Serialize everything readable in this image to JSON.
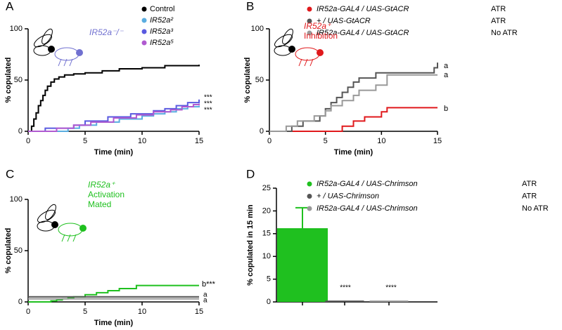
{
  "chart_data": [
    {
      "type": "step",
      "label": "A",
      "xlabel": "Time (min)",
      "ylabel": "% copulated",
      "xlim": [
        0,
        15
      ],
      "xticks": [
        0,
        5,
        10,
        15
      ],
      "ylim": [
        0,
        100
      ],
      "yticks": [
        0,
        50,
        100
      ],
      "series": [
        {
          "name": "Control",
          "color": "#000000",
          "x": [
            0,
            0.3,
            0.5,
            0.7,
            0.9,
            1.1,
            1.3,
            1.5,
            1.7,
            2,
            2.3,
            2.7,
            3.2,
            4,
            5,
            6.5,
            8,
            10,
            12,
            15
          ],
          "values": [
            0,
            5,
            12,
            18,
            25,
            30,
            35,
            40,
            44,
            48,
            51,
            53,
            55,
            56,
            57,
            59,
            61,
            62,
            64,
            65
          ]
        },
        {
          "name": "IR52a²",
          "color": "#5aade0",
          "x": [
            0,
            3.5,
            4.5,
            6,
            8,
            10,
            11,
            12,
            13,
            14,
            15
          ],
          "values": [
            0,
            3,
            6,
            9,
            12,
            15,
            17,
            19,
            22,
            24,
            25
          ]
        },
        {
          "name": "IR52a³",
          "color": "#5a5ae0",
          "x": [
            0,
            1.5,
            4,
            5,
            7,
            9,
            11,
            12,
            13,
            14,
            15
          ],
          "values": [
            0,
            3,
            6,
            10,
            14,
            17,
            20,
            22,
            25,
            28,
            31
          ]
        },
        {
          "name": "IR52a⁵",
          "color": "#b05ad0",
          "x": [
            0,
            2.5,
            4,
            5.5,
            7.5,
            9.5,
            11,
            12.5,
            13.5,
            14.5,
            15
          ],
          "values": [
            0,
            3,
            6,
            9,
            13,
            16,
            19,
            21,
            24,
            26,
            27
          ]
        }
      ],
      "annotations": [
        {
          "text": "IR52a⁻/⁻",
          "color": "#7070d0"
        },
        {
          "text": "***",
          "color": "#000000"
        },
        {
          "text": "***",
          "color": "#000000"
        },
        {
          "text": "***",
          "color": "#000000"
        }
      ]
    },
    {
      "type": "step",
      "label": "B",
      "xlabel": "Time (min)",
      "ylabel": "% copulated",
      "xlim": [
        0,
        15
      ],
      "xticks": [
        0,
        5,
        10,
        15
      ],
      "ylim": [
        0,
        100
      ],
      "yticks": [
        0,
        50,
        100
      ],
      "series": [
        {
          "name": "IR52a-GAL4 / UAS-GtACR",
          "condition": "ATR",
          "color": "#e0191c",
          "x": [
            0,
            6.5,
            7.5,
            8.5,
            10,
            10.5,
            15
          ],
          "values": [
            0,
            5,
            10,
            14,
            19,
            23,
            23
          ]
        },
        {
          "name": "+ / UAS-GtACR",
          "condition": "ATR",
          "color": "#555555",
          "x": [
            0,
            2,
            3,
            4.5,
            5,
            5.5,
            6,
            6.5,
            7,
            7.5,
            8,
            9.5,
            14.7,
            15
          ],
          "values": [
            0,
            5,
            10,
            15,
            22,
            28,
            33,
            38,
            43,
            48,
            52,
            57,
            62,
            67
          ]
        },
        {
          "name": "IR52a-GAL4 / UAS-GtACR",
          "condition": "No ATR",
          "color": "#999999",
          "x": [
            0,
            1.5,
            2.5,
            4,
            5,
            5.5,
            6.5,
            7.5,
            8,
            9.5,
            10.5,
            15
          ],
          "values": [
            0,
            5,
            10,
            15,
            20,
            25,
            30,
            35,
            40,
            45,
            55,
            55
          ]
        }
      ],
      "annotations": [
        {
          "text": "IR52a⁺",
          "color": "#e0191c"
        },
        {
          "text": "Inhibition",
          "color": "#e0191c"
        },
        {
          "text": "a",
          "color": "#000000"
        },
        {
          "text": "a",
          "color": "#000000"
        },
        {
          "text": "b",
          "color": "#000000"
        }
      ]
    },
    {
      "type": "step",
      "label": "C",
      "xlabel": "Time (min)",
      "ylabel": "% copulated",
      "xlim": [
        0,
        15
      ],
      "xticks": [
        0,
        5,
        10,
        15
      ],
      "ylim": [
        0,
        100
      ],
      "yticks": [
        0,
        50,
        100
      ],
      "series": [
        {
          "color": "#1fc01f",
          "x": [
            0,
            2,
            2.5,
            3,
            3.5,
            4,
            5,
            6,
            7,
            8,
            9.5,
            15
          ],
          "values": [
            0,
            1,
            2,
            3,
            4,
            5,
            7,
            9,
            11,
            13,
            16,
            16
          ]
        },
        {
          "color": "#555555",
          "x": [
            0,
            15
          ],
          "values": [
            5,
            5
          ]
        },
        {
          "color": "#999999",
          "x": [
            0,
            15
          ],
          "values": [
            3,
            3
          ]
        }
      ],
      "annotations": [
        {
          "text": "IR52a⁺",
          "color": "#1fc01f"
        },
        {
          "text": "Activation",
          "color": "#1fc01f"
        },
        {
          "text": "Mated",
          "color": "#1fc01f"
        },
        {
          "text": "b***",
          "color": "#000000"
        },
        {
          "text": "a",
          "color": "#000000"
        },
        {
          "text": "a",
          "color": "#000000"
        }
      ]
    },
    {
      "type": "bar",
      "label": "D",
      "ylabel": "% copulated in 15 min",
      "ylim": [
        0,
        25
      ],
      "yticks": [
        0,
        5,
        10,
        15,
        20,
        25
      ],
      "categories": [
        null,
        null,
        null
      ],
      "values": [
        16.2,
        0.3,
        0.3
      ],
      "errors": [
        4.5,
        null,
        null
      ],
      "colors": [
        "#1fc01f",
        "#555555",
        "#999999"
      ],
      "legend": [
        {
          "name": "IR52a-GAL4 / UAS-Chrimson",
          "condition": "ATR"
        },
        {
          "name": "+ / UAS-Chrimson",
          "condition": "ATR"
        },
        {
          "name": "IR52a-GAL4 / UAS-Chrimson",
          "condition": "No ATR"
        }
      ],
      "annotations": [
        {
          "text": "****",
          "color": "#000000"
        },
        {
          "text": "****",
          "color": "#000000"
        }
      ]
    }
  ]
}
